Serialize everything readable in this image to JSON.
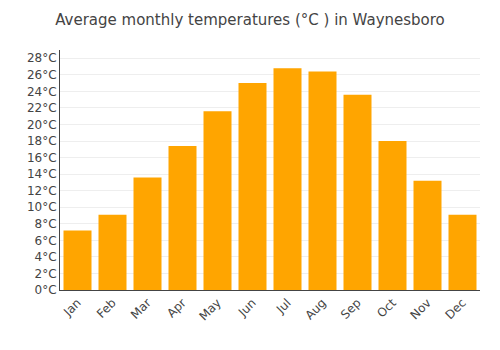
{
  "chart_data": {
    "type": "bar",
    "title": "Average monthly temperatures (°C ) in Waynesboro",
    "categories": [
      "Jan",
      "Feb",
      "Mar",
      "Apr",
      "May",
      "Jun",
      "Jul",
      "Aug",
      "Sep",
      "Oct",
      "Nov",
      "Dec"
    ],
    "values": [
      7.2,
      9.1,
      13.6,
      17.4,
      21.6,
      25.0,
      26.8,
      26.4,
      23.6,
      18.0,
      13.2,
      9.1
    ],
    "color": "#FFA500",
    "ylim": [
      0,
      29
    ],
    "yticks": [
      {
        "value": 0,
        "label": "0°C"
      },
      {
        "value": 2,
        "label": "2°C"
      },
      {
        "value": 4,
        "label": "4°C"
      },
      {
        "value": 6,
        "label": "6°C"
      },
      {
        "value": 8,
        "label": "8°C"
      },
      {
        "value": 10,
        "label": "10°C"
      },
      {
        "value": 12,
        "label": "12°C"
      },
      {
        "value": 14,
        "label": "14°C"
      },
      {
        "value": 16,
        "label": "16°C"
      },
      {
        "value": 18,
        "label": "18°C"
      },
      {
        "value": 20,
        "label": "20°C"
      },
      {
        "value": 22,
        "label": "22°C"
      },
      {
        "value": 24,
        "label": "24°C"
      },
      {
        "value": 26,
        "label": "26°C"
      },
      {
        "value": 28,
        "label": "28°C"
      }
    ],
    "grid": true
  }
}
